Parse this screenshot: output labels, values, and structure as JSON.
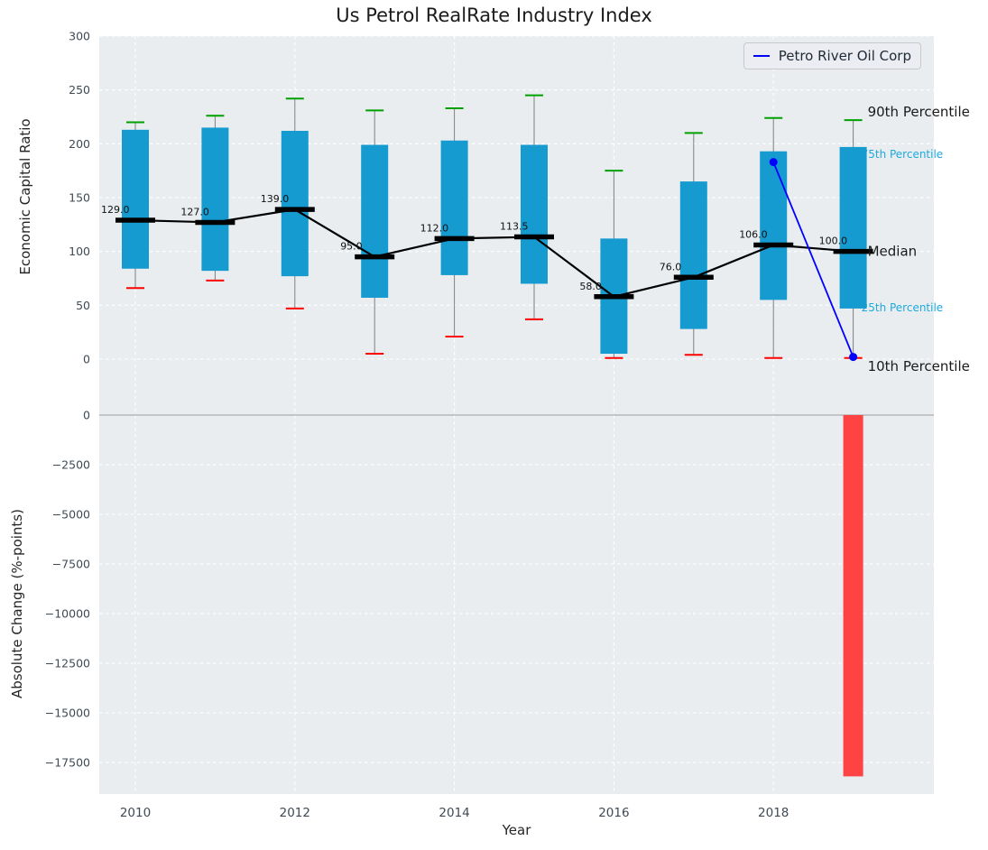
{
  "title": "Us Petrol RealRate Industry Index",
  "legend": {
    "label": "Petro River Oil Corp"
  },
  "axes": {
    "xlabel": "Year",
    "xticks": [
      2010,
      2012,
      2014,
      2016,
      2018
    ],
    "top": {
      "ylabel": "Economic Capital Ratio",
      "yticks": [
        0,
        50,
        100,
        150,
        200,
        250,
        300
      ],
      "ylim": [
        -30,
        310
      ]
    },
    "bottom": {
      "ylabel": "Absolute Change (%-points)",
      "yticks": [
        0,
        -2500,
        -5000,
        -7500,
        -10000,
        -12500,
        -15000,
        -17500
      ],
      "ylim": [
        -18750,
        0
      ]
    }
  },
  "colors": {
    "plot_bg": "#e9edf0",
    "box_fill": "#169bd0",
    "p90_cap": "#00a000",
    "p10_cap": "#ff0000",
    "median": "#000000",
    "company_line": "#0000ff",
    "change_bar": "#ff4242",
    "percentile_text": "#1ea9dc"
  },
  "chart_data": [
    {
      "type": "boxplot+line",
      "title": "Us Petrol RealRate Industry Index",
      "xlabel": "Year",
      "ylabel": "Economic Capital Ratio",
      "years": [
        2010,
        2011,
        2012,
        2013,
        2014,
        2015,
        2016,
        2017,
        2018,
        2019
      ],
      "boxes": [
        {
          "year": 2010,
          "p10": 66,
          "p25": 84,
          "median": 129.0,
          "p75": 213,
          "p90": 220,
          "label": "129.0"
        },
        {
          "year": 2011,
          "p10": 73,
          "p25": 82,
          "median": 127.0,
          "p75": 215,
          "p90": 226,
          "label": "127.0"
        },
        {
          "year": 2012,
          "p10": 47,
          "p25": 77,
          "median": 139.0,
          "p75": 212,
          "p90": 242,
          "label": "139.0"
        },
        {
          "year": 2013,
          "p10": 5,
          "p25": 57,
          "median": 95.0,
          "p75": 199,
          "p90": 231,
          "label": "95.0"
        },
        {
          "year": 2014,
          "p10": 21,
          "p25": 78,
          "median": 112.0,
          "p75": 203,
          "p90": 233,
          "label": "112.0"
        },
        {
          "year": 2015,
          "p10": 37,
          "p25": 70,
          "median": 113.5,
          "p75": 199,
          "p90": 245,
          "label": "113.5"
        },
        {
          "year": 2016,
          "p10": 1,
          "p25": 5,
          "median": 58.0,
          "p75": 112,
          "p90": 175,
          "label": "58.0"
        },
        {
          "year": 2017,
          "p10": 4,
          "p25": 28,
          "median": 76.0,
          "p75": 165,
          "p90": 210,
          "label": "76.0"
        },
        {
          "year": 2018,
          "p10": 1,
          "p25": 55,
          "median": 106.0,
          "p75": 193,
          "p90": 224,
          "label": "106.0"
        },
        {
          "year": 2019,
          "p10": 1,
          "p25": 47,
          "median": 100.0,
          "p75": 197,
          "p90": 222,
          "label": "100.0"
        }
      ],
      "company_series": {
        "name": "Petro River Oil Corp",
        "x": [
          2018,
          2019
        ],
        "y": [
          183,
          2
        ]
      },
      "annotations": [
        {
          "text": "90th Percentile",
          "attach": "p90",
          "style": "dark"
        },
        {
          "text": "75th Percentile",
          "attach": "p75",
          "style": "percentile"
        },
        {
          "text": "Median",
          "attach": "median",
          "style": "dark"
        },
        {
          "text": "25th Percentile",
          "attach": "p25",
          "style": "percentile"
        },
        {
          "text": "10th Percentile",
          "attach": "p10",
          "style": "dark"
        }
      ]
    },
    {
      "type": "bar",
      "ylabel": "Absolute Change (%-points)",
      "x": [
        2019
      ],
      "values": [
        -18200
      ]
    }
  ]
}
